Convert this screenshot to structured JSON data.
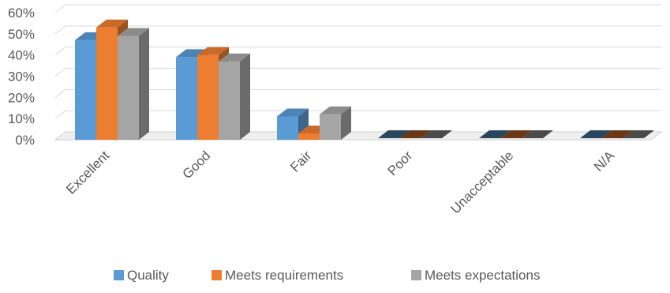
{
  "chart_data": {
    "type": "bar",
    "style": "3d-clustered-column",
    "categories": [
      "Excellent",
      "Good",
      "Fair",
      "Poor",
      "Unacceptable",
      "N/A"
    ],
    "series": [
      {
        "name": "Quality",
        "values": [
          47,
          39,
          11,
          0,
          0,
          0
        ],
        "color": "#5B9BD5"
      },
      {
        "name": "Meets requirements",
        "values": [
          53,
          40,
          3,
          0,
          0,
          0
        ],
        "color": "#ED7D31"
      },
      {
        "name": "Meets expectations",
        "values": [
          49,
          37,
          12,
          0,
          0,
          0
        ],
        "color": "#A5A5A5"
      }
    ],
    "yticks": [
      "0%",
      "10%",
      "20%",
      "30%",
      "40%",
      "50%",
      "60%"
    ],
    "ylim": [
      0,
      60
    ],
    "title": "",
    "xlabel": "",
    "ylabel": "",
    "grid": true,
    "legend_position": "bottom"
  }
}
